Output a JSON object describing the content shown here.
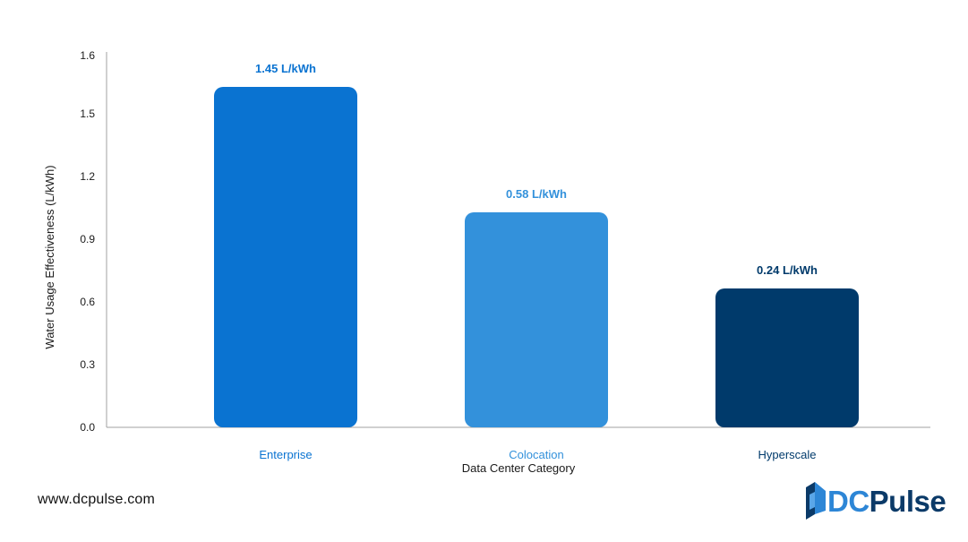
{
  "chart_data": {
    "type": "bar",
    "categories": [
      "Enterprise",
      "Colocation",
      "Hyperscale"
    ],
    "values": [
      1.45,
      0.58,
      0.24
    ],
    "data_labels": [
      "1.45 L/kWh",
      "0.58 L/kWh",
      "0.24 L/kWh"
    ],
    "bar_colors": [
      "#0a73d1",
      "#3391db",
      "#003a6b"
    ],
    "xlabel": "Data Center Category",
    "ylabel": "Water Usage Effectiveness (L/kWh)",
    "y_tick_labels": [
      "0.0",
      "0.3",
      "0.6",
      "0.9",
      "1.2",
      "1.5",
      "1.6"
    ],
    "grid": false
  },
  "footer": {
    "url": "www.dcpulse.com"
  },
  "logo": {
    "text_dc": "DC",
    "text_pulse": "Pulse"
  },
  "colors": {
    "axis": "#9a9a9a",
    "text": "#1a1a1a",
    "brand_light": "#2d86d6",
    "brand_dark": "#0b3a68"
  }
}
